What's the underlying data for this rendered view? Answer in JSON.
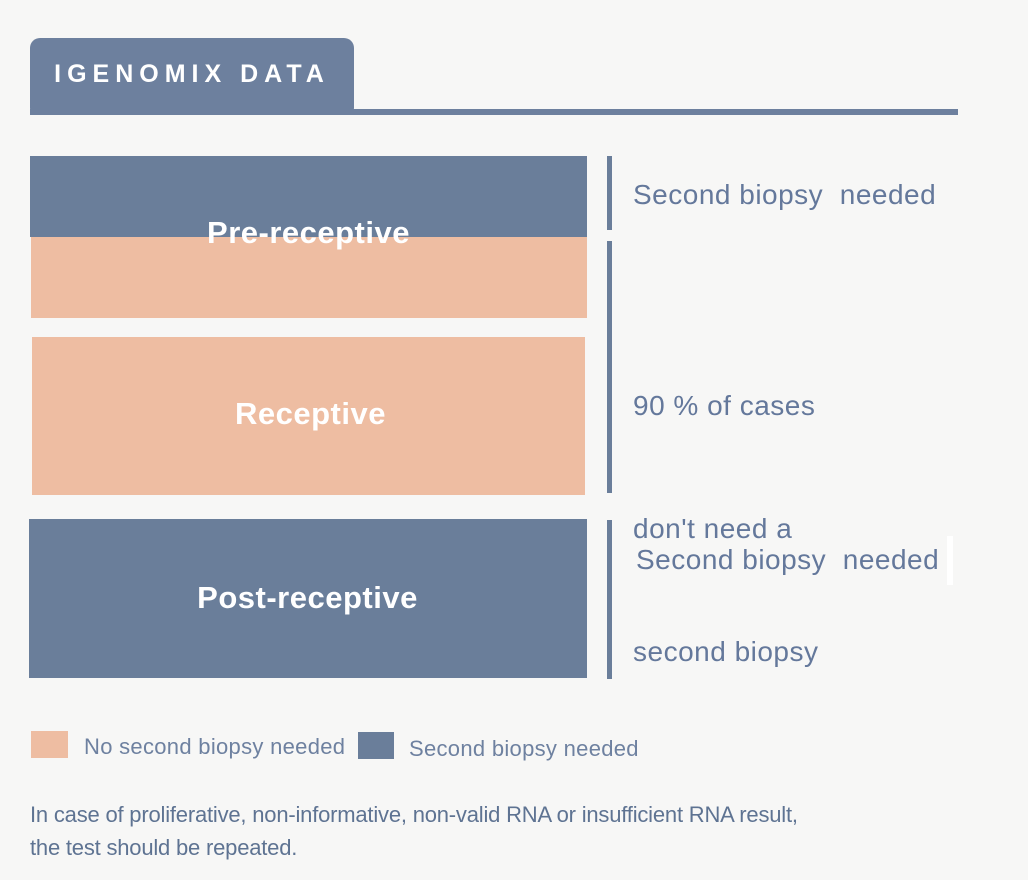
{
  "colors": {
    "background": "#f7f7f6",
    "slate": "#6d809e",
    "bar-blue": "#6a7e9a",
    "peach": "#eebda2",
    "annotation-text": "#64789b",
    "legend-text": "#6e81a0",
    "footer-text": "#5e7392",
    "label-white": "#ffffff"
  },
  "header": {
    "title": "IGENOMIX DATA"
  },
  "diagram": {
    "bars": [
      {
        "label": "Pre-receptive",
        "segments": [
          "second-biopsy-needed",
          "no-second-biopsy-needed"
        ]
      },
      {
        "label": "Receptive",
        "segments": [
          "no-second-biopsy-needed"
        ]
      },
      {
        "label": "Post-receptive",
        "segments": [
          "second-biopsy-needed"
        ]
      }
    ],
    "annotations": {
      "top": "Second biopsy  needed",
      "middle": {
        "lines": [
          "90 % of cases",
          "don't need a",
          "second biopsy"
        ]
      },
      "bottom": "Second biopsy  needed"
    }
  },
  "legend": {
    "items": [
      {
        "label": "No second biopsy needed",
        "color": "#eebda2"
      },
      {
        "label": "Second biopsy needed",
        "color": "#6a7e9a"
      }
    ]
  },
  "footer": {
    "lines": [
      "In case of proliferative, non-informative, non-valid RNA or insufficient RNA result,",
      "the test should be repeated."
    ]
  }
}
